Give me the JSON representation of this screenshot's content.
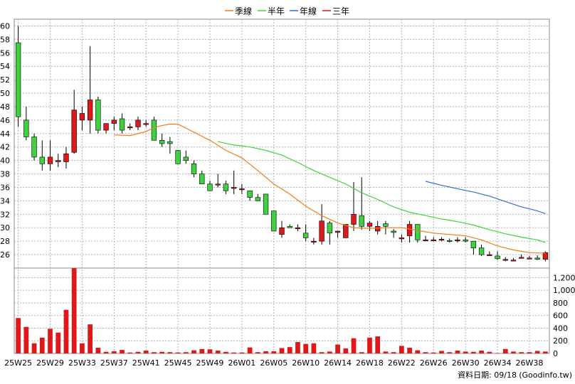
{
  "legend": [
    {
      "label": "季線",
      "color": "#f07d1a"
    },
    {
      "label": "半年",
      "color": "#3fd23f"
    },
    {
      "label": "年線",
      "color": "#2b6fd8"
    },
    {
      "label": "三年",
      "color": "#e01818"
    }
  ],
  "footer": {
    "date_label": "資料日期: 09/18",
    "source": "(Goodinfo.tw)"
  },
  "chart_data": {
    "type": "candlestick",
    "colors": {
      "up": "#e01818",
      "down": "#3fd23f",
      "volume": "#e01818"
    },
    "price_axis": {
      "min": 24,
      "max": 61,
      "ticks": [
        26,
        28,
        30,
        32,
        34,
        36,
        38,
        40,
        42,
        44,
        46,
        48,
        50,
        52,
        54,
        56,
        58,
        60
      ]
    },
    "volume_axis": {
      "min": 0,
      "max": 1350,
      "ticks": [
        0,
        200,
        400,
        600,
        800,
        "1,000",
        "1,200"
      ]
    },
    "x_ticks": [
      "25W25",
      "25W29",
      "25W33",
      "25W37",
      "25W41",
      "25W45",
      "25W49",
      "26W01",
      "26W05",
      "26W10",
      "26W14",
      "26W18",
      "26W22",
      "26W26",
      "26W30",
      "26W34",
      "26W38"
    ],
    "candles": [
      [
        57.5,
        60,
        45,
        46.5
      ],
      [
        46,
        48,
        43,
        43.5
      ],
      [
        43.5,
        44,
        40,
        40.5
      ],
      [
        40.5,
        43,
        38.5,
        39.5
      ],
      [
        39.5,
        43,
        38.5,
        40.5
      ],
      [
        39.8,
        41,
        39,
        40
      ],
      [
        39.8,
        42,
        38.8,
        41
      ],
      [
        41.2,
        50.5,
        41,
        47.5
      ],
      [
        46,
        48,
        44.5,
        47
      ],
      [
        46,
        57,
        44,
        49
      ],
      [
        49,
        49.5,
        44,
        44.5
      ],
      [
        44.5,
        45.5,
        44,
        45.5
      ],
      [
        45.5,
        46.5,
        44.5,
        46
      ],
      [
        46.2,
        47,
        44,
        44.5
      ],
      [
        45,
        45.5,
        44.5,
        45
      ],
      [
        45,
        46.5,
        44.5,
        46
      ],
      [
        45.5,
        46,
        45,
        45.5
      ],
      [
        46,
        46.5,
        43,
        43
      ],
      [
        43,
        44,
        42,
        42.5
      ],
      [
        42.8,
        43.5,
        41,
        42.5
      ],
      [
        41.5,
        41.5,
        39.5,
        39.5
      ],
      [
        40.5,
        41.5,
        39.5,
        40
      ],
      [
        39.5,
        40,
        37.5,
        38
      ],
      [
        38,
        38.5,
        36.5,
        36.5
      ],
      [
        36.5,
        37,
        35.5,
        35.5
      ],
      [
        36.5,
        38,
        36,
        36.5
      ],
      [
        36.5,
        37,
        35,
        35.5
      ],
      [
        36,
        38.5,
        35,
        36
      ],
      [
        35.8,
        36.5,
        35,
        35.8
      ],
      [
        35.5,
        35.5,
        34,
        34.5
      ],
      [
        34.5,
        35,
        34,
        34
      ],
      [
        35,
        35,
        32,
        32
      ],
      [
        32.5,
        32.5,
        29.5,
        29.5
      ],
      [
        29,
        31,
        28.5,
        30
      ],
      [
        30.2,
        30.5,
        30,
        30
      ],
      [
        30,
        30.5,
        29.5,
        30
      ],
      [
        29.2,
        30.5,
        28,
        28.5
      ],
      [
        28,
        28.5,
        27.5,
        28
      ],
      [
        28,
        33.5,
        27.5,
        31
      ],
      [
        30.7,
        31,
        27.5,
        29.2
      ],
      [
        29.3,
        29.5,
        28.5,
        29.5
      ],
      [
        28.5,
        30.5,
        28.5,
        30.5
      ],
      [
        30.5,
        36.8,
        29.5,
        32
      ],
      [
        31.8,
        37.5,
        29.7,
        30.2
      ],
      [
        30.2,
        31,
        29.5,
        30.7
      ],
      [
        29.5,
        31,
        29,
        30.2
      ],
      [
        30.6,
        31,
        29,
        30.2
      ],
      [
        29.5,
        29.8,
        28.5,
        29.3
      ],
      [
        28.5,
        29,
        27.8,
        28.5
      ],
      [
        28.8,
        31,
        27.8,
        30.5
      ],
      [
        30.5,
        30.5,
        27.8,
        28.2
      ],
      [
        28.2,
        28.8,
        28,
        28.2
      ],
      [
        28.2,
        28.6,
        28,
        28.2
      ],
      [
        28.2,
        28.6,
        28,
        28.3
      ],
      [
        28.1,
        28.4,
        27.8,
        28
      ],
      [
        28.1,
        28.6,
        27.8,
        28.2
      ],
      [
        28.2,
        28.6,
        27.8,
        28
      ],
      [
        28,
        28,
        26,
        27
      ],
      [
        27,
        27.5,
        25.8,
        26
      ],
      [
        26,
        26.5,
        25.8,
        26
      ],
      [
        25.8,
        26.5,
        25.2,
        25.4
      ],
      [
        25.3,
        25.6,
        25,
        25.3
      ],
      [
        25.2,
        25.5,
        25,
        25.2
      ],
      [
        25.6,
        26,
        25.5,
        25.6
      ],
      [
        25.5,
        25.8,
        25.3,
        25.5
      ],
      [
        25.5,
        25.9,
        25.2,
        25.3
      ],
      [
        25.3,
        26.5,
        25,
        26.3
      ]
    ],
    "volumes": [
      560,
      420,
      160,
      250,
      390,
      330,
      690,
      1350,
      160,
      460,
      90,
      25,
      35,
      55,
      15,
      25,
      45,
      20,
      25,
      20,
      15,
      20,
      50,
      70,
      65,
      45,
      25,
      15,
      15,
      95,
      20,
      35,
      35,
      85,
      100,
      180,
      150,
      160,
      20,
      30,
      140,
      80,
      240,
      20,
      250,
      270,
      30,
      20,
      120,
      90,
      50,
      20,
      15,
      40,
      20,
      45,
      30,
      25,
      45,
      25,
      5,
      70,
      30,
      20,
      20,
      40,
      30
    ],
    "series": [
      {
        "name": "季線",
        "color": "#f07d1a",
        "points": [
          [
            12,
            43.8
          ],
          [
            14,
            43.7
          ],
          [
            16,
            44.3
          ],
          [
            17,
            44.9
          ],
          [
            18,
            45.2
          ],
          [
            19,
            45.4
          ],
          [
            20,
            45.4
          ],
          [
            22,
            44.2
          ],
          [
            24,
            43.0
          ],
          [
            26,
            41.5
          ],
          [
            28,
            40.4
          ],
          [
            30,
            38.5
          ],
          [
            32,
            36.5
          ],
          [
            34,
            35
          ],
          [
            36,
            33.2
          ],
          [
            38,
            31.8
          ],
          [
            40,
            30.7
          ],
          [
            42,
            30
          ],
          [
            44,
            29.9
          ],
          [
            46,
            30
          ],
          [
            48,
            30
          ],
          [
            50,
            29.6
          ],
          [
            52,
            29.2
          ],
          [
            54,
            29
          ],
          [
            56,
            28.8
          ],
          [
            58,
            28.2
          ],
          [
            60,
            27.3
          ],
          [
            62,
            26.7
          ],
          [
            64,
            26.3
          ],
          [
            66,
            26.2
          ]
        ]
      },
      {
        "name": "半年",
        "color": "#3fd23f",
        "points": [
          [
            25,
            42.8
          ],
          [
            27,
            42.3
          ],
          [
            29,
            42
          ],
          [
            31,
            41.5
          ],
          [
            33,
            40.8
          ],
          [
            35,
            39.7
          ],
          [
            37,
            38.5
          ],
          [
            39,
            37.5
          ],
          [
            41,
            36.5
          ],
          [
            43,
            35.2
          ],
          [
            45,
            34.2
          ],
          [
            47,
            33.1
          ],
          [
            49,
            32.3
          ],
          [
            51,
            31.8
          ],
          [
            53,
            31.3
          ],
          [
            55,
            30.9
          ],
          [
            57,
            30.4
          ],
          [
            59,
            29.7
          ],
          [
            61,
            29.1
          ],
          [
            63,
            28.6
          ],
          [
            65,
            28.2
          ],
          [
            66,
            27.8
          ]
        ]
      },
      {
        "name": "年線",
        "color": "#2b6fd8",
        "points": [
          [
            51,
            36.9
          ],
          [
            53,
            36.3
          ],
          [
            55,
            35.8
          ],
          [
            57,
            35.3
          ],
          [
            59,
            34.7
          ],
          [
            61,
            33.9
          ],
          [
            63,
            33.1
          ],
          [
            65,
            32.5
          ],
          [
            66,
            32.1
          ]
        ]
      }
    ]
  }
}
